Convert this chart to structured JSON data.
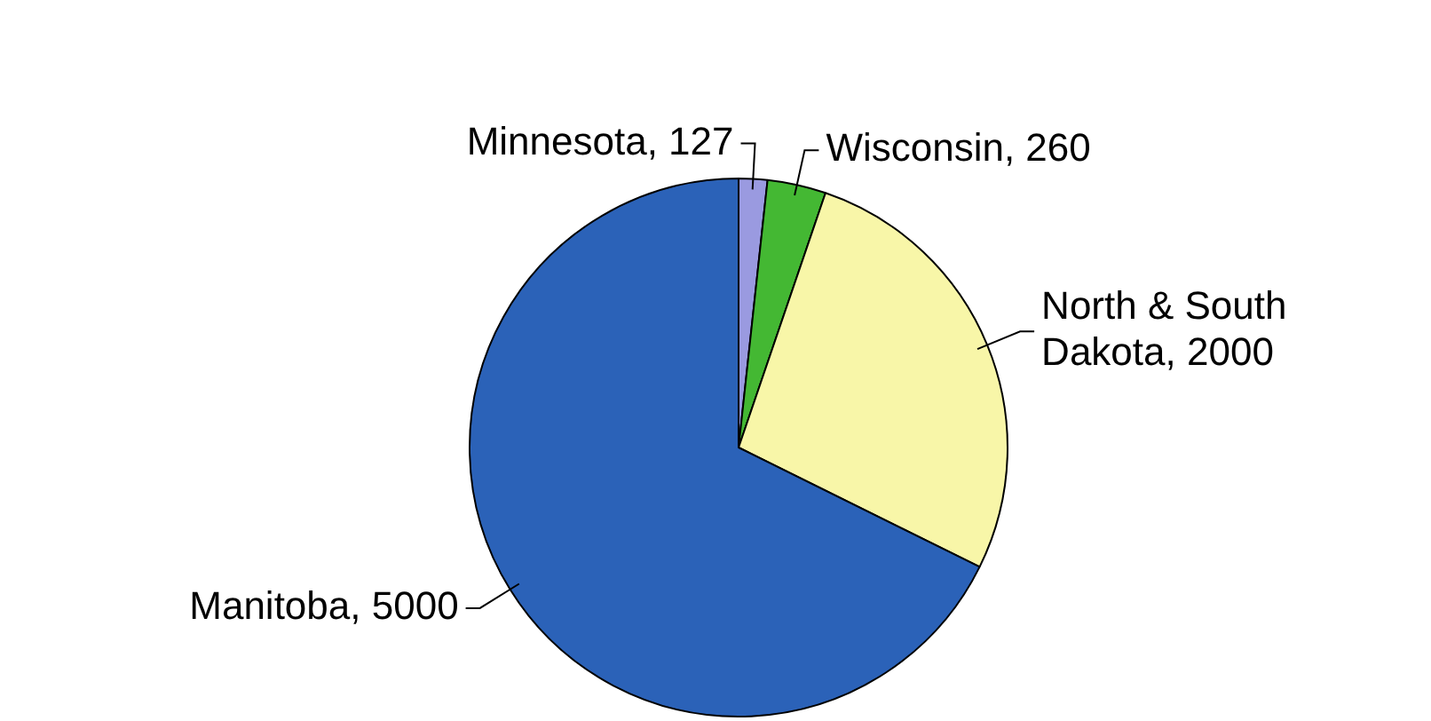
{
  "chart_data": {
    "type": "pie",
    "categories": [
      "Minnesota",
      "Wisconsin",
      "North & South Dakota",
      "Manitoba"
    ],
    "values": [
      127,
      260,
      2000,
      5000
    ],
    "colors": [
      "#9a9ae0",
      "#44b833",
      "#f8f6a8",
      "#2b62b8"
    ],
    "value_labels": [
      ", 127",
      ", 260",
      ", 2000",
      ", 5000"
    ],
    "legend": false
  }
}
